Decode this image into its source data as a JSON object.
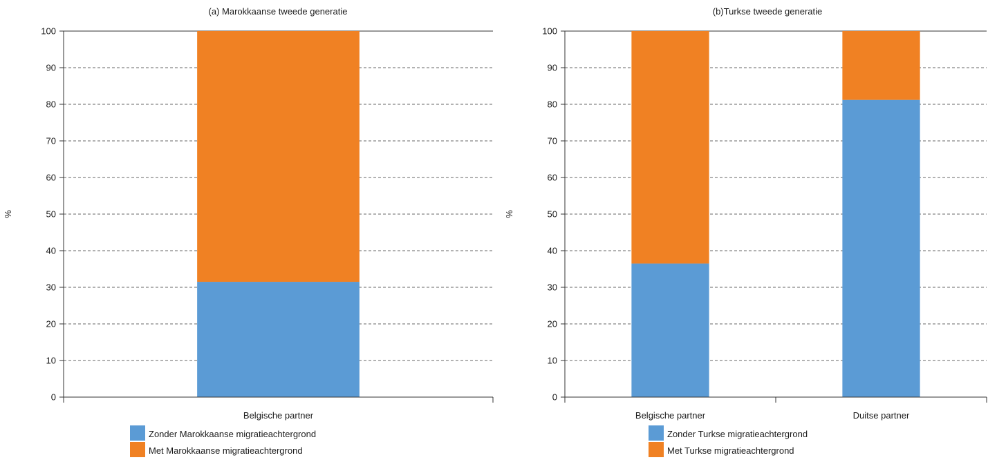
{
  "chart_data": [
    {
      "type": "bar",
      "stacked": true,
      "title": "(a) Marokkaanse tweede generatie",
      "ylabel": "%",
      "ylim": [
        0,
        100
      ],
      "yticks": [
        0,
        10,
        20,
        30,
        40,
        50,
        60,
        70,
        80,
        90,
        100
      ],
      "grid": true,
      "categories": [
        "Belgische partner"
      ],
      "series": [
        {
          "name": "Zonder Marokkaanse migratieachtergrond",
          "color": "#5b9bd5",
          "values": [
            31.5
          ]
        },
        {
          "name": "Met Marokkaanse migratieachtergrond",
          "color": "#f08123",
          "values": [
            68.5
          ]
        }
      ],
      "legend_position": "bottom"
    },
    {
      "type": "bar",
      "stacked": true,
      "title": "(b)Turkse tweede generatie",
      "ylabel": "%",
      "ylim": [
        0,
        100
      ],
      "yticks": [
        0,
        10,
        20,
        30,
        40,
        50,
        60,
        70,
        80,
        90,
        100
      ],
      "grid": true,
      "categories": [
        "Belgische partner",
        "Duitse partner"
      ],
      "series": [
        {
          "name": "Zonder Turkse migratieachtergrond",
          "color": "#5b9bd5",
          "values": [
            36.5,
            81.2
          ]
        },
        {
          "name": "Met Turkse migratieachtergrond",
          "color": "#f08123",
          "values": [
            63.5,
            18.8
          ]
        }
      ],
      "legend_position": "bottom"
    }
  ]
}
